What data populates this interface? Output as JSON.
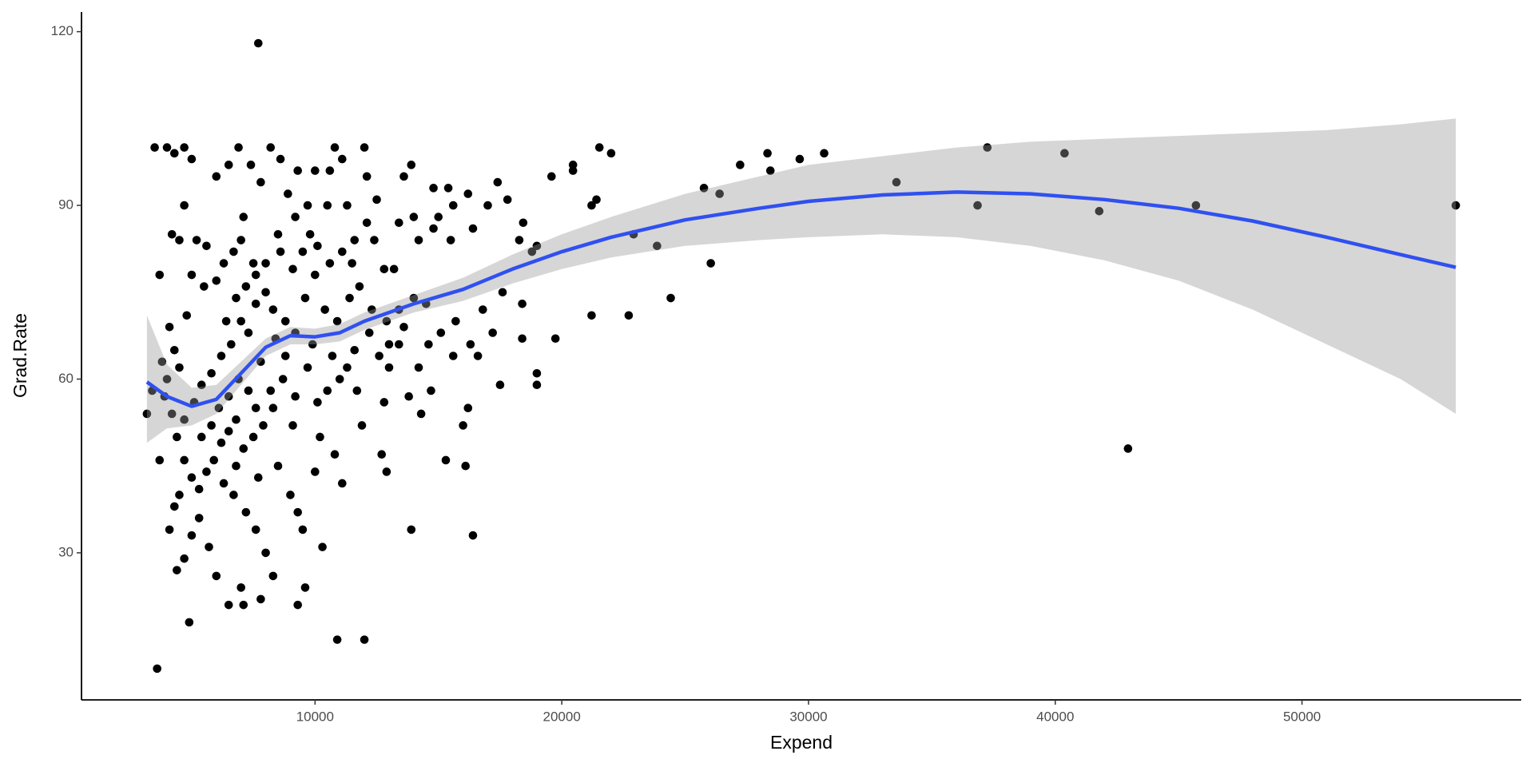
{
  "chart_data": {
    "type": "scatter",
    "x_label": "Expend",
    "y_label": "Grad.Rate",
    "point_color": "#000000",
    "x": [
      56233,
      45702,
      41782,
      42950,
      40376,
      37248,
      36851,
      33564,
      30634,
      29644,
      28455,
      28337,
      27228,
      26040,
      26396,
      25762,
      24416,
      23861,
      22911,
      22713,
      22000,
      21525,
      21405,
      21208,
      21208,
      20455,
      20455,
      19743,
      19584,
      18990,
      18990,
      18990,
      18792,
      18436,
      18396,
      18396,
      18277,
      4000,
      4300,
      4700,
      5000,
      4700,
      4200,
      4500,
      5200,
      5600,
      6000,
      6500,
      6900,
      7400,
      7800,
      8200,
      8600,
      9300,
      10000,
      10800,
      11100,
      12000,
      12100,
      12500,
      13600,
      13900,
      14800,
      15400,
      15600,
      16200,
      17000,
      17400,
      17800,
      15000,
      14000,
      13200,
      12800,
      11500,
      10500,
      9800,
      9200,
      8500,
      8000,
      7500,
      7000,
      6700,
      6300,
      6000,
      5500,
      5000,
      4800,
      4300,
      4100,
      4000,
      4500,
      3900,
      4200,
      4400,
      4700,
      5100,
      5400,
      5800,
      6200,
      6600,
      7000,
      7300,
      7600,
      8000,
      8300,
      8800,
      9200,
      9600,
      10000,
      10400,
      10900,
      11400,
      11800,
      12300,
      12900,
      13400,
      14000,
      14500,
      15100,
      15700,
      16300,
      16600,
      17200,
      17500,
      16200,
      16000,
      15300,
      16100,
      16400,
      13900,
      14300,
      13800,
      12800,
      12700,
      12900,
      12600,
      11600,
      11000,
      10500,
      10100,
      9700,
      9200,
      8700,
      8300,
      7900,
      7500,
      7100,
      6800,
      6500,
      6200,
      5900,
      5600,
      5300,
      5000,
      4700,
      4500,
      4300,
      4100,
      4400,
      4700,
      5000,
      5300,
      5700,
      6000,
      6500,
      7000,
      7100,
      7800,
      8300,
      9300,
      9600,
      8000,
      7600,
      7200,
      6700,
      6300,
      6800,
      7700,
      8500,
      9000,
      9300,
      9500,
      10000,
      10300,
      10800,
      11100,
      11900,
      12000,
      10900,
      4900,
      3600,
      7700,
      3186,
      3400,
      3500,
      3700,
      3800,
      3700,
      8800,
      8400,
      7800,
      7300,
      6900,
      6500,
      6100,
      5800,
      5400,
      9900,
      10700,
      11300,
      11700,
      12200,
      13000,
      13600,
      14200,
      14700,
      8200,
      7600,
      9100,
      10200,
      6400,
      6800,
      7200,
      7600,
      8600,
      9100,
      9500,
      10100,
      10600,
      11100,
      11600,
      12400,
      7100,
      8900,
      9700,
      10600,
      11300,
      12100,
      13400,
      14200,
      14800,
      15500,
      16400,
      13000,
      13400,
      14600,
      15600,
      16800,
      17600
    ],
    "y": [
      90,
      90,
      89,
      48,
      99,
      100,
      90,
      94,
      99,
      98,
      96,
      99,
      97,
      80,
      92,
      93,
      74,
      83,
      85,
      71,
      99,
      100,
      91,
      90,
      71,
      96,
      97,
      67,
      95,
      83,
      61,
      59,
      82,
      87,
      67,
      73,
      84,
      100,
      99,
      100,
      98,
      90,
      85,
      84,
      84,
      83,
      95,
      97,
      100,
      97,
      94,
      100,
      98,
      96,
      96,
      100,
      98,
      100,
      95,
      91,
      95,
      97,
      93,
      93,
      90,
      92,
      90,
      94,
      91,
      88,
      88,
      79,
      79,
      80,
      90,
      85,
      88,
      85,
      80,
      80,
      84,
      82,
      80,
      77,
      76,
      78,
      71,
      65,
      69,
      60,
      62,
      57,
      54,
      50,
      53,
      56,
      59,
      61,
      64,
      66,
      70,
      68,
      73,
      75,
      72,
      70,
      68,
      74,
      78,
      72,
      70,
      74,
      76,
      72,
      70,
      72,
      74,
      73,
      68,
      70,
      66,
      64,
      68,
      59,
      55,
      52,
      46,
      45,
      33,
      34,
      54,
      57,
      56,
      47,
      44,
      64,
      65,
      60,
      58,
      56,
      62,
      57,
      60,
      55,
      52,
      50,
      48,
      53,
      51,
      49,
      46,
      44,
      41,
      43,
      46,
      40,
      38,
      34,
      27,
      29,
      33,
      36,
      31,
      26,
      21,
      24,
      21,
      22,
      26,
      21,
      24,
      30,
      34,
      37,
      40,
      42,
      45,
      43,
      45,
      40,
      37,
      34,
      44,
      31,
      47,
      42,
      52,
      15,
      15,
      18,
      10,
      118,
      54,
      58,
      100,
      78,
      63,
      46,
      64,
      67,
      63,
      58,
      60,
      57,
      55,
      52,
      50,
      66,
      64,
      62,
      58,
      68,
      66,
      69,
      62,
      58,
      58,
      55,
      52,
      50,
      70,
      74,
      76,
      78,
      82,
      79,
      82,
      83,
      80,
      82,
      84,
      84,
      88,
      92,
      90,
      96,
      90,
      87,
      87,
      84,
      86,
      84,
      86,
      62,
      66,
      66,
      64,
      72,
      75
    ],
    "smooth": {
      "color": "#3050f0",
      "band_color": "#999999",
      "x": [
        3186,
        4000,
        5000,
        6000,
        7000,
        8000,
        9000,
        10000,
        11000,
        12000,
        14000,
        16000,
        18000,
        20000,
        22000,
        25000,
        28000,
        30000,
        33000,
        36000,
        39000,
        42000,
        45000,
        48000,
        51000,
        54000,
        56233
      ],
      "y": [
        59.5,
        57,
        55.3,
        56.5,
        61,
        65.5,
        67.5,
        67.3,
        68,
        70,
        73,
        75.5,
        79,
        82,
        84.5,
        87.5,
        89.5,
        90.7,
        91.8,
        92.3,
        92,
        91,
        89.5,
        87.3,
        84.5,
        81.5,
        79.3
      ],
      "lower": [
        49,
        51.5,
        52,
        54,
        59,
        64,
        66,
        66,
        66.5,
        68.5,
        71.5,
        73.5,
        76.5,
        79,
        81,
        83,
        84,
        84.5,
        85,
        84.5,
        83,
        80.5,
        77,
        72,
        66,
        60,
        54
      ],
      "upper": [
        71,
        62.5,
        58.5,
        59,
        63,
        67,
        69,
        68.7,
        69.5,
        71.5,
        74.5,
        77.5,
        81.5,
        85,
        88,
        92,
        95,
        97,
        98.5,
        100,
        101,
        101.5,
        102,
        102.5,
        103,
        104,
        105
      ]
    },
    "xlim": [
      534,
      58885
    ],
    "ylim": [
      4.6,
      123.4
    ],
    "xticks": [
      10000,
      20000,
      30000,
      40000,
      50000
    ],
    "yticks": [
      30,
      60,
      90,
      120
    ]
  }
}
